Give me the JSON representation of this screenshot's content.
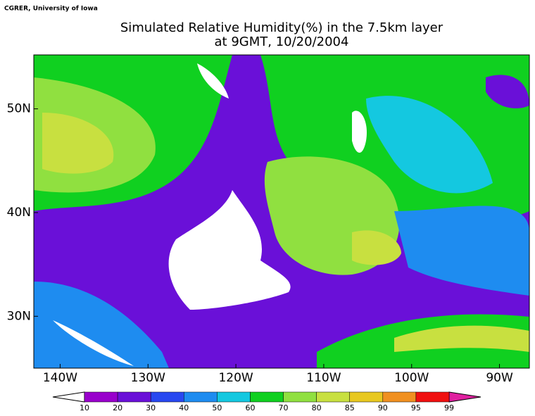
{
  "header": {
    "credit": "CGRER, University of Iowa",
    "title": "Simulated Relative Humidity(%) in the 7.5km layer",
    "subtitle": "at 9GMT, 10/20/2004"
  },
  "map": {
    "xlim": [
      -143,
      -86.6
    ],
    "ylim": [
      25,
      55.2
    ],
    "xticks": [
      {
        "value": -140,
        "label": "140W"
      },
      {
        "value": -130,
        "label": "130W"
      },
      {
        "value": -120,
        "label": "120W"
      },
      {
        "value": -110,
        "label": "110W"
      },
      {
        "value": -100,
        "label": "100W"
      },
      {
        "value": -90,
        "label": "90W"
      }
    ],
    "yticks": [
      {
        "value": 30,
        "label": "30N"
      },
      {
        "value": 40,
        "label": "40N"
      },
      {
        "value": 50,
        "label": "50N"
      }
    ]
  },
  "colorbar": {
    "levels": [
      10,
      20,
      30,
      40,
      50,
      60,
      70,
      80,
      85,
      90,
      95,
      99
    ],
    "colors": [
      "#ffffff",
      "#9900cc",
      "#6a10d8",
      "#2848f0",
      "#1e8cf0",
      "#14c8e0",
      "#10d020",
      "#90e040",
      "#c8e040",
      "#e8c820",
      "#f09020",
      "#f01010",
      "#e020a0"
    ]
  }
}
